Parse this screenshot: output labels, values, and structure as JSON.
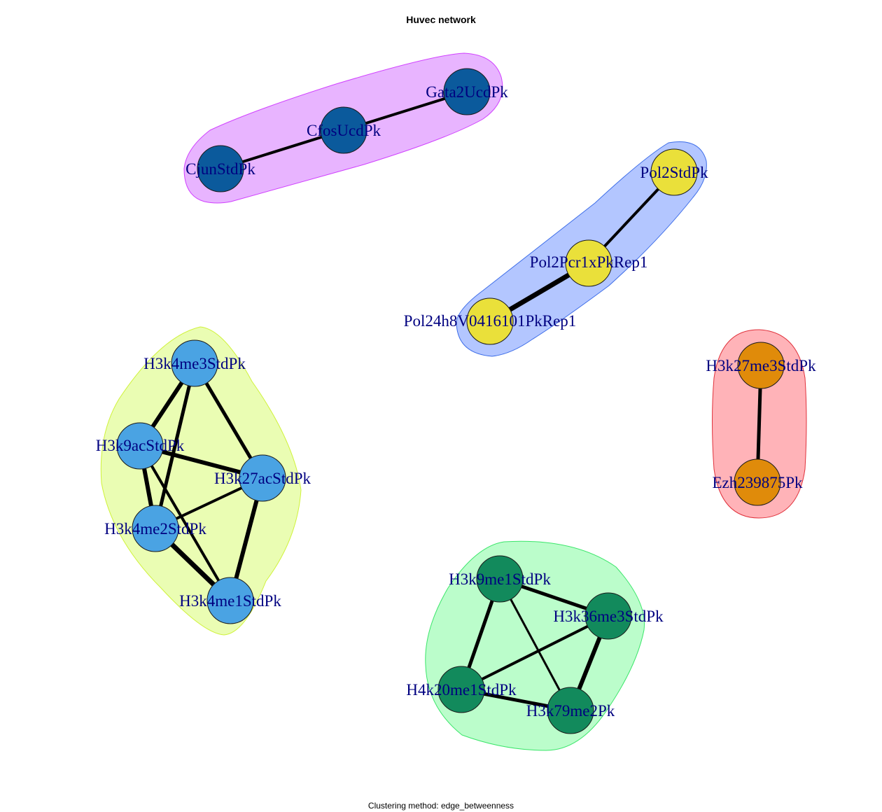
{
  "title": "Huvec network",
  "subtitle": "Clustering method: edge_betweenness",
  "label_color": "#000080",
  "clusters": [
    {
      "id": "c1",
      "fill": "#E8B4FF",
      "stroke": "#D040FF",
      "node_color": "#0B5A9C",
      "nodes": [
        "CjunStdPk",
        "CfosUcdPk",
        "Gata2UcdPk"
      ]
    },
    {
      "id": "c2",
      "fill": "#B3C6FF",
      "stroke": "#3D6DE8",
      "node_color": "#EAE03A",
      "nodes": [
        "Pol2StdPk",
        "Pol2Pcr1xPkRep1",
        "Pol24h8V0416101PkRep1"
      ]
    },
    {
      "id": "c3",
      "fill": "#FFB3B8",
      "stroke": "#E0323C",
      "node_color": "#E08B0A",
      "nodes": [
        "H3k27me3StdPk",
        "Ezh239875Pk"
      ]
    },
    {
      "id": "c4",
      "fill": "#EAFDB3",
      "stroke": "#CFF23A",
      "node_color": "#4AA3E3",
      "nodes": [
        "H3k4me3StdPk",
        "H3k9acStdPk",
        "H3k27acStdPk",
        "H3k4me2StdPk",
        "H3k4me1StdPk"
      ]
    },
    {
      "id": "c5",
      "fill": "#BBFDCB",
      "stroke": "#3BE66A",
      "node_color": "#128A5C",
      "nodes": [
        "H3k9me1StdPk",
        "H3k36me3StdPk",
        "H4k20me1StdPk",
        "H3k79me2Pk"
      ]
    }
  ],
  "edges": [
    {
      "source": "CjunStdPk",
      "target": "CfosUcdPk",
      "weight": 4
    },
    {
      "source": "CfosUcdPk",
      "target": "Gata2UcdPk",
      "weight": 4
    },
    {
      "source": "Pol2StdPk",
      "target": "Pol2Pcr1xPkRep1",
      "weight": 4
    },
    {
      "source": "Pol2Pcr1xPkRep1",
      "target": "Pol24h8V0416101PkRep1",
      "weight": 7
    },
    {
      "source": "H3k27me3StdPk",
      "target": "Ezh239875Pk",
      "weight": 5
    },
    {
      "source": "H3k4me3StdPk",
      "target": "H3k9acStdPk",
      "weight": 6
    },
    {
      "source": "H3k4me3StdPk",
      "target": "H3k27acStdPk",
      "weight": 5
    },
    {
      "source": "H3k4me3StdPk",
      "target": "H3k4me2StdPk",
      "weight": 5
    },
    {
      "source": "H3k9acStdPk",
      "target": "H3k27acStdPk",
      "weight": 6
    },
    {
      "source": "H3k9acStdPk",
      "target": "H3k4me2StdPk",
      "weight": 6
    },
    {
      "source": "H3k9acStdPk",
      "target": "H3k4me1StdPk",
      "weight": 4
    },
    {
      "source": "H3k27acStdPk",
      "target": "H3k4me2StdPk",
      "weight": 4
    },
    {
      "source": "H3k27acStdPk",
      "target": "H3k4me1StdPk",
      "weight": 6
    },
    {
      "source": "H3k4me2StdPk",
      "target": "H3k4me1StdPk",
      "weight": 7
    },
    {
      "source": "H3k9me1StdPk",
      "target": "H3k36me3StdPk",
      "weight": 5
    },
    {
      "source": "H3k9me1StdPk",
      "target": "H4k20me1StdPk",
      "weight": 5
    },
    {
      "source": "H3k9me1StdPk",
      "target": "H3k79me2Pk",
      "weight": 3
    },
    {
      "source": "H3k36me3StdPk",
      "target": "H4k20me1StdPk",
      "weight": 4
    },
    {
      "source": "H3k36me3StdPk",
      "target": "H3k79me2Pk",
      "weight": 6
    },
    {
      "source": "H4k20me1StdPk",
      "target": "H3k79me2Pk",
      "weight": 5
    }
  ]
}
